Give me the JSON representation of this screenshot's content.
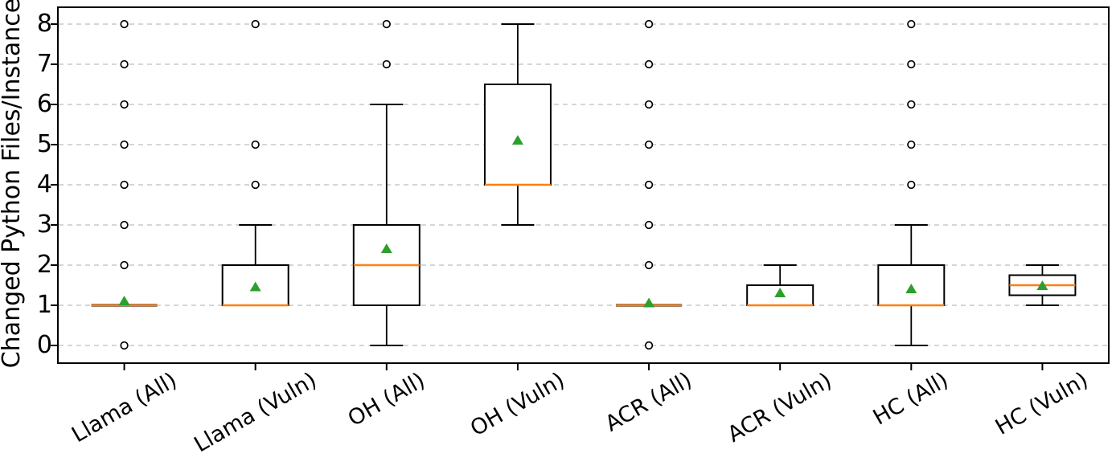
{
  "figure": {
    "y_axis_label": "Changed Python Files/Instance"
  },
  "chart_data": {
    "type": "boxplot",
    "title": "",
    "xlabel": "",
    "ylabel": "Changed Python Files/Instance",
    "categories": [
      "Llama (All)",
      "Llama (Vuln)",
      "OH (All)",
      "OH (Vuln)",
      "ACR (All)",
      "ACR (Vuln)",
      "HC (All)",
      "HC (Vuln)"
    ],
    "yticks": [
      0,
      1,
      2,
      3,
      4,
      5,
      6,
      7,
      8
    ],
    "ylim": [
      -0.42,
      8.4
    ],
    "grid": "horizontal-dashed",
    "legend": "none",
    "xtick_rotation_deg": 30,
    "colors": {
      "box_edge": "#000000",
      "median": "#ff7f0e",
      "mean_marker": "#2ca02c",
      "outlier_edge": "#000000",
      "grid": "#c9c9c9"
    },
    "boxes": [
      {
        "label": "Llama (All)",
        "whisker_low": 1,
        "q1": 1,
        "median": 1,
        "q3": 1,
        "whisker_high": 1,
        "mean": 1.1,
        "outliers": [
          0,
          2,
          3,
          4,
          5,
          6,
          7,
          8
        ]
      },
      {
        "label": "Llama (Vuln)",
        "whisker_low": 1,
        "q1": 1,
        "median": 1,
        "q3": 2,
        "whisker_high": 3,
        "mean": 1.45,
        "outliers": [
          4,
          5,
          8
        ]
      },
      {
        "label": "OH (All)",
        "whisker_low": 0,
        "q1": 1,
        "median": 2,
        "q3": 3,
        "whisker_high": 6,
        "mean": 2.4,
        "outliers": [
          7,
          8
        ]
      },
      {
        "label": "OH (Vuln)",
        "whisker_low": 3,
        "q1": 4,
        "median": 4,
        "q3": 6.5,
        "whisker_high": 8,
        "mean": 5.1,
        "outliers": []
      },
      {
        "label": "ACR (All)",
        "whisker_low": 1,
        "q1": 1,
        "median": 1,
        "q3": 1,
        "whisker_high": 1,
        "mean": 1.05,
        "outliers": [
          0,
          2,
          3,
          4,
          5,
          6,
          7,
          8
        ]
      },
      {
        "label": "ACR (Vuln)",
        "whisker_low": 1,
        "q1": 1,
        "median": 1,
        "q3": 1.5,
        "whisker_high": 2,
        "mean": 1.3,
        "outliers": []
      },
      {
        "label": "HC (All)",
        "whisker_low": 0,
        "q1": 1,
        "median": 1,
        "q3": 2,
        "whisker_high": 3,
        "mean": 1.4,
        "outliers": [
          4,
          5,
          6,
          7,
          8
        ]
      },
      {
        "label": "HC (Vuln)",
        "whisker_low": 1,
        "q1": 1.25,
        "median": 1.5,
        "q3": 1.75,
        "whisker_high": 2,
        "mean": 1.48,
        "outliers": []
      }
    ]
  }
}
